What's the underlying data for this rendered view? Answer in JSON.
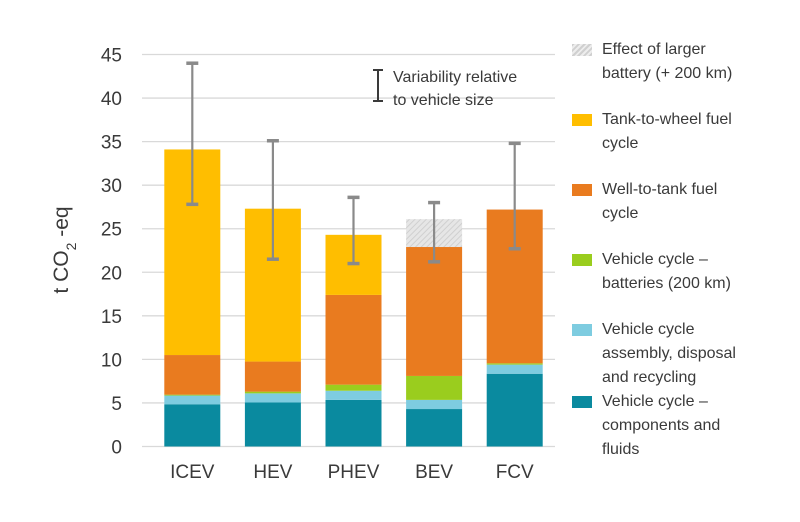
{
  "chart_data": {
    "type": "bar",
    "stacked": true,
    "title": "",
    "xlabel": "",
    "ylabel": "t CO2-eq",
    "ylabel_parts": {
      "main": "t CO",
      "sub": "2",
      "suffix": " -eq"
    },
    "ylim": [
      0,
      45
    ],
    "yticks": [
      0,
      5,
      10,
      15,
      20,
      25,
      30,
      35,
      40,
      45
    ],
    "grid": true,
    "categories": [
      "ICEV",
      "HEV",
      "PHEV",
      "BEV",
      "FCV"
    ],
    "series": [
      {
        "name": "Vehicle cycle – components and fluids",
        "color": "#0A8A9F",
        "values": [
          4.85,
          5.05,
          5.35,
          4.3,
          8.35
        ]
      },
      {
        "name": "Vehicle cycle assembly, disposal and recycling",
        "color": "#7ECCE0",
        "values": [
          1.0,
          1.05,
          1.05,
          1.05,
          1.05
        ]
      },
      {
        "name": "Vehicle cycle – batteries (200 km)",
        "color": "#9ACD1E",
        "values": [
          0.1,
          0.2,
          0.7,
          2.75,
          0.15
        ]
      },
      {
        "name": "Well-to-tank fuel cycle",
        "color": "#E97B1F",
        "values": [
          4.55,
          3.45,
          10.3,
          14.8,
          17.65
        ]
      },
      {
        "name": "Tank-to-wheel fuel cycle",
        "color": "#FFBE00",
        "values": [
          23.6,
          17.55,
          6.9,
          0,
          0
        ]
      },
      {
        "name": "Effect of larger battery (+ 200 km)",
        "color": "#DDDDDD",
        "pattern": "hatched",
        "values": [
          0,
          0,
          0,
          3.2,
          0
        ]
      }
    ],
    "error_bars": {
      "label": "Variability relative to vehicle size",
      "color": "#8A8A8A",
      "ranges": [
        [
          27.8,
          44.0
        ],
        [
          21.5,
          35.1
        ],
        [
          21.0,
          28.6
        ],
        [
          21.2,
          28.0
        ],
        [
          22.7,
          34.8
        ]
      ]
    },
    "annotation": {
      "line1": "Variability relative",
      "line2": "to vehicle size"
    },
    "legend_position": "right"
  },
  "legend": [
    {
      "lines": [
        "Effect of larger",
        "battery (+ 200 km)"
      ],
      "color": "#DDDDDD",
      "hatched": true
    },
    {
      "lines": [
        "Tank-to-wheel fuel",
        "cycle"
      ],
      "color": "#FFBE00"
    },
    {
      "lines": [
        "Well-to-tank fuel",
        "cycle"
      ],
      "color": "#E97B1F"
    },
    {
      "lines": [
        "Vehicle cycle –",
        "batteries (200 km)"
      ],
      "color": "#9ACD1E"
    },
    {
      "lines": [
        "Vehicle cycle",
        "assembly, disposal",
        "and recycling"
      ],
      "color": "#7ECCE0"
    },
    {
      "lines": [
        "Vehicle cycle –",
        "components and",
        "fluids"
      ],
      "color": "#0A8A9F"
    }
  ]
}
